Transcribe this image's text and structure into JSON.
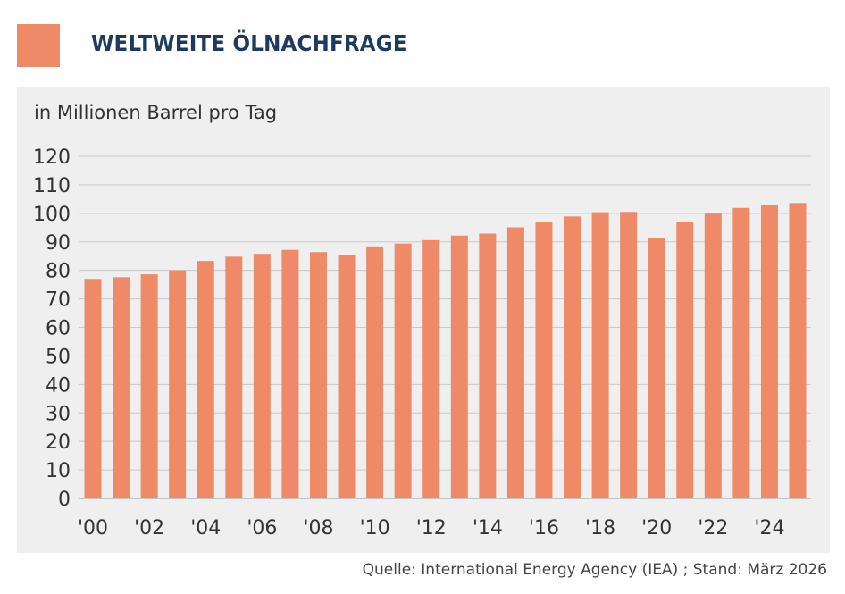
{
  "header": {
    "title": "WELTWEITE ÖLNACHFRAGE",
    "accent_color": "#ee8a68",
    "title_color": "#1f3a5f"
  },
  "source": "Quelle: International Energy Agency (IEA) ; Stand: März 2026",
  "chart_data": {
    "type": "bar",
    "title": "WELTWEITE ÖLNACHFRAGE",
    "ylabel": "in Millionen Barrel pro Tag",
    "xlabel": "",
    "ylim": [
      0,
      120
    ],
    "yticks": [
      0,
      10,
      20,
      30,
      40,
      50,
      60,
      70,
      80,
      90,
      100,
      110,
      120
    ],
    "grid": true,
    "bar_color": "#ee8a68",
    "categories": [
      "'00",
      "'01",
      "'02",
      "'03",
      "'04",
      "'05",
      "'06",
      "'07",
      "'08",
      "'09",
      "'10",
      "'11",
      "'12",
      "'13",
      "'14",
      "'15",
      "'16",
      "'17",
      "'18",
      "'19",
      "'20",
      "'21",
      "'22",
      "'23",
      "'24",
      "'25"
    ],
    "x_tick_labels": [
      "'00",
      "'02",
      "'04",
      "'06",
      "'08",
      "'10",
      "'12",
      "'14",
      "'16",
      "'18",
      "'20",
      "'22",
      "'24"
    ],
    "values": [
      77,
      77.6,
      78.6,
      80,
      83.3,
      84.8,
      85.8,
      87.2,
      86.4,
      85.3,
      88.4,
      89.4,
      90.6,
      92.2,
      92.9,
      95.1,
      96.8,
      98.9,
      100.4,
      100.5,
      91.4,
      97.1,
      99.9,
      101.9,
      102.9,
      103.6
    ]
  }
}
